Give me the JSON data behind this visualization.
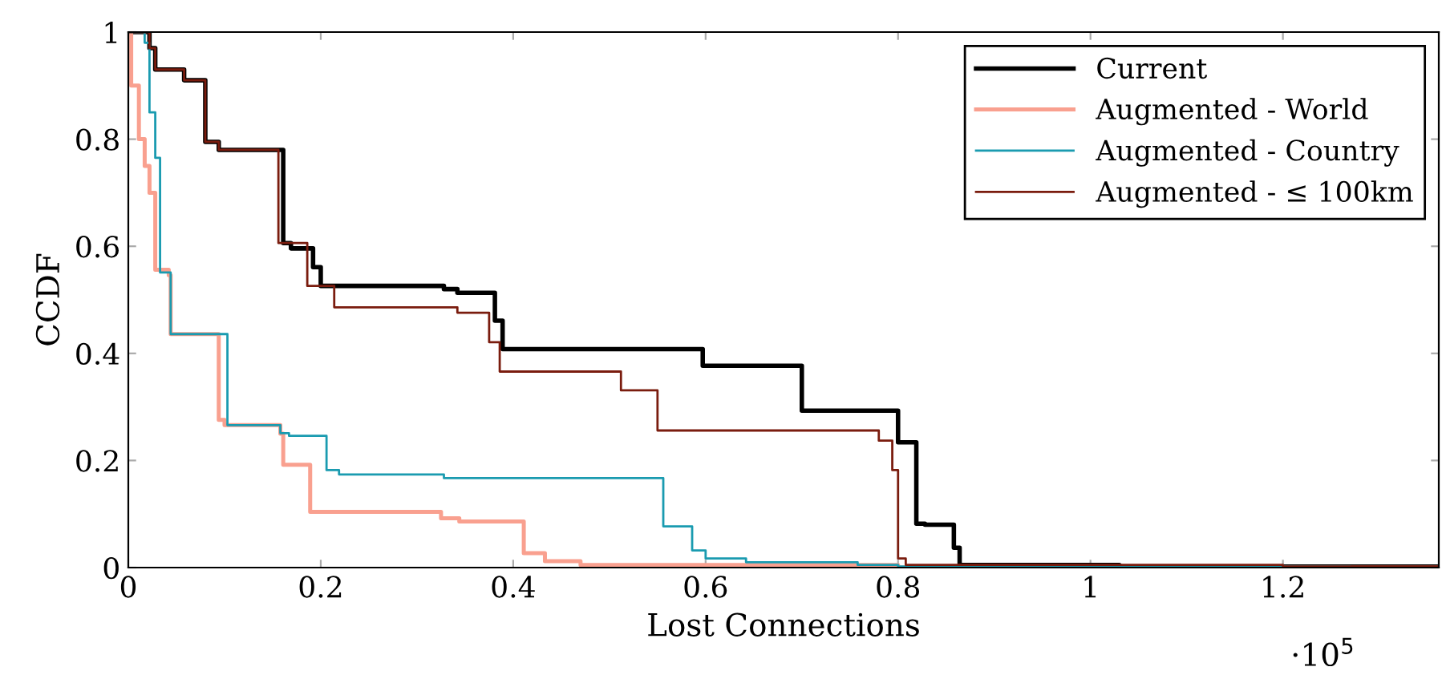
{
  "chart_data": {
    "type": "step",
    "xlabel": "Lost Connections",
    "ylabel": "CCDF",
    "xlim": [
      0,
      1.362
    ],
    "xticks": [
      0,
      0.2,
      0.4,
      0.6,
      0.8,
      1,
      1.2
    ],
    "ylim": [
      0,
      1
    ],
    "yticks": [
      0,
      0.2,
      0.4,
      0.6,
      0.8,
      1
    ],
    "grid": false,
    "legend": "top right",
    "annotations": [
      "·10$^{5}$"
    ],
    "series": [
      {
        "name": "Current",
        "color": "#000000",
        "x": [
          0,
          0.022,
          0.028,
          0.058,
          0.08,
          0.094,
          0.161,
          0.169,
          0.192,
          0.2,
          0.328,
          0.342,
          0.381,
          0.389,
          0.597,
          0.7,
          0.8,
          0.819,
          0.828,
          0.858,
          0.864,
          1.03,
          1.362
        ],
        "values": [
          1,
          0.97,
          0.93,
          0.91,
          0.795,
          0.78,
          0.606,
          0.596,
          0.561,
          0.526,
          0.52,
          0.513,
          0.461,
          0.408,
          0.377,
          0.293,
          0.234,
          0.082,
          0.08,
          0.037,
          0.005,
          0.002,
          0.002
        ]
      },
      {
        "name": "Augmented - World",
        "color": "#f9a08f",
        "x": [
          0,
          0.003,
          0.011,
          0.017,
          0.022,
          0.028,
          0.042,
          0.044,
          0.094,
          0.1,
          0.158,
          0.161,
          0.189,
          0.325,
          0.344,
          0.411,
          0.433,
          0.47,
          0.8,
          1.362
        ],
        "values": [
          1,
          0.9,
          0.8,
          0.75,
          0.7,
          0.556,
          0.546,
          0.436,
          0.276,
          0.266,
          0.25,
          0.192,
          0.104,
          0.092,
          0.086,
          0.027,
          0.012,
          0.005,
          0,
          0
        ]
      },
      {
        "name": "Augmented - Country",
        "color": "#1a9bb0",
        "x": [
          0,
          0.017,
          0.022,
          0.028,
          0.033,
          0.044,
          0.103,
          0.158,
          0.167,
          0.206,
          0.219,
          0.328,
          0.556,
          0.586,
          0.6,
          0.642,
          0.758,
          0.8,
          1.27,
          1.362
        ],
        "values": [
          1,
          0.98,
          0.85,
          0.765,
          0.551,
          0.436,
          0.266,
          0.251,
          0.246,
          0.182,
          0.174,
          0.167,
          0.077,
          0.032,
          0.017,
          0.01,
          0.005,
          0.002,
          0,
          0
        ]
      },
      {
        "name": "Augmented - ≤ 100km",
        "color": "#7a1c0e",
        "x": [
          0,
          0.022,
          0.028,
          0.058,
          0.08,
          0.094,
          0.156,
          0.186,
          0.214,
          0.342,
          0.375,
          0.386,
          0.512,
          0.55,
          0.78,
          0.794,
          0.8,
          0.808,
          1.2,
          1.362
        ],
        "values": [
          1,
          0.97,
          0.93,
          0.91,
          0.795,
          0.78,
          0.606,
          0.526,
          0.486,
          0.476,
          0.421,
          0.366,
          0.331,
          0.256,
          0.237,
          0.182,
          0.017,
          0.005,
          0.002,
          0.002
        ]
      }
    ]
  }
}
